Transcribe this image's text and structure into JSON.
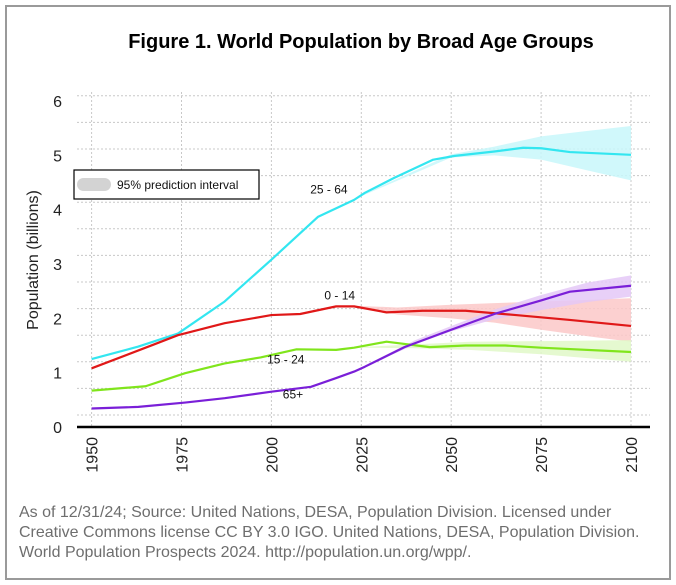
{
  "chart_data": {
    "type": "line",
    "title": "Figure 1. World Population by Broad Age Groups",
    "xlabel": "",
    "ylabel": "Population (billions)",
    "xlim": [
      1950,
      2100
    ],
    "ylim": [
      0,
      6
    ],
    "xticks": [
      1950,
      1975,
      2000,
      2025,
      2050,
      2075,
      2100
    ],
    "yticks": [
      0,
      1,
      2,
      3,
      4,
      5,
      6
    ],
    "xtick_labels": [
      "1950",
      "1975",
      "2000",
      "2025",
      "2050",
      "2075",
      "2100"
    ],
    "ytick_labels": [
      "0",
      "1",
      "2",
      "3",
      "4",
      "5",
      "6"
    ],
    "grid": true,
    "legend": {
      "placement": "top-left",
      "entries": [
        {
          "label": "95% prediction interval",
          "color": "#d3d3d3"
        }
      ]
    },
    "series": [
      {
        "name": "25 - 64",
        "color": "#33e6f0",
        "band_color": "#c8f7fa",
        "x": [
          1950,
          1963,
          1974,
          1987,
          2000,
          2013,
          2023,
          2026,
          2034,
          2045,
          2051,
          2062,
          2070,
          2075,
          2083,
          2100
        ],
        "values": [
          1.25,
          1.48,
          1.72,
          2.31,
          3.08,
          3.87,
          4.18,
          4.31,
          4.58,
          4.92,
          4.99,
          5.07,
          5.14,
          5.13,
          5.06,
          5.01
        ],
        "band": {
          "x": [
            2024,
            2050,
            2062,
            2075,
            2088,
            2100
          ],
          "lower": [
            4.22,
            4.96,
            5.0,
            4.92,
            4.72,
            4.54
          ],
          "upper": [
            4.24,
            5.02,
            5.16,
            5.35,
            5.45,
            5.54
          ]
        },
        "label_position": {
          "year": 2016,
          "value": 4.3
        }
      },
      {
        "name": "0 - 14",
        "color": "#e01818",
        "band_color": "#fbc8c8",
        "x": [
          1950,
          1967,
          1974,
          1987,
          2000,
          2008,
          2018,
          2023,
          2032,
          2042,
          2054,
          2068,
          2083,
          2100
        ],
        "values": [
          1.08,
          1.51,
          1.69,
          1.91,
          2.06,
          2.08,
          2.22,
          2.22,
          2.11,
          2.14,
          2.14,
          2.06,
          1.97,
          1.86
        ],
        "band": {
          "x": [
            2024,
            2035,
            2050,
            2062,
            2075,
            2088,
            2100
          ],
          "lower": [
            2.21,
            2.07,
            2.0,
            1.92,
            1.79,
            1.67,
            1.57
          ],
          "upper": [
            2.23,
            2.2,
            2.25,
            2.28,
            2.31,
            2.34,
            2.37
          ]
        },
        "label_position": {
          "year": 2019,
          "value": 2.35
        }
      },
      {
        "name": "15 - 24",
        "color": "#80e51c",
        "band_color": "#e1f8c8",
        "x": [
          1950,
          1965,
          1976,
          1987,
          1997,
          2007,
          2018,
          2023,
          2032,
          2044,
          2054,
          2065,
          2075,
          2100
        ],
        "values": [
          0.67,
          0.75,
          0.99,
          1.17,
          1.28,
          1.43,
          1.42,
          1.46,
          1.57,
          1.47,
          1.5,
          1.5,
          1.46,
          1.38
        ],
        "band": {
          "x": [
            2024,
            2040,
            2055,
            2075,
            2100
          ],
          "lower": [
            1.46,
            1.45,
            1.42,
            1.34,
            1.2
          ],
          "upper": [
            1.47,
            1.52,
            1.57,
            1.58,
            1.6
          ]
        },
        "label_position": {
          "year": 2004,
          "value": 1.17
        }
      },
      {
        "name": "65+",
        "color": "#7a1fd8",
        "band_color": "#e4c8f7",
        "x": [
          1950,
          1963,
          1976,
          1987,
          2000,
          2011,
          2018,
          2023,
          2026,
          2037,
          2050,
          2062,
          2075,
          2083,
          2100
        ],
        "values": [
          0.34,
          0.37,
          0.45,
          0.53,
          0.65,
          0.74,
          0.9,
          1.02,
          1.11,
          1.47,
          1.79,
          2.08,
          2.33,
          2.49,
          2.6
        ],
        "band": {
          "x": [
            2024,
            2040,
            2050,
            2062,
            2075,
            2088,
            2100
          ],
          "lower": [
            1.05,
            1.52,
            1.76,
            1.98,
            2.15,
            2.3,
            2.4
          ],
          "upper": [
            1.06,
            1.6,
            1.86,
            2.16,
            2.43,
            2.66,
            2.79
          ]
        },
        "label_position": {
          "year": 2006,
          "value": 0.52
        }
      }
    ]
  },
  "caption": "As of 12/31/24; Source: United Nations, DESA, Population Division. Licensed under Creative Commons license CC BY 3.0 IGO. United Nations, DESA, Population Division. World Population Prospects 2024. http://population.un.org/wpp/."
}
